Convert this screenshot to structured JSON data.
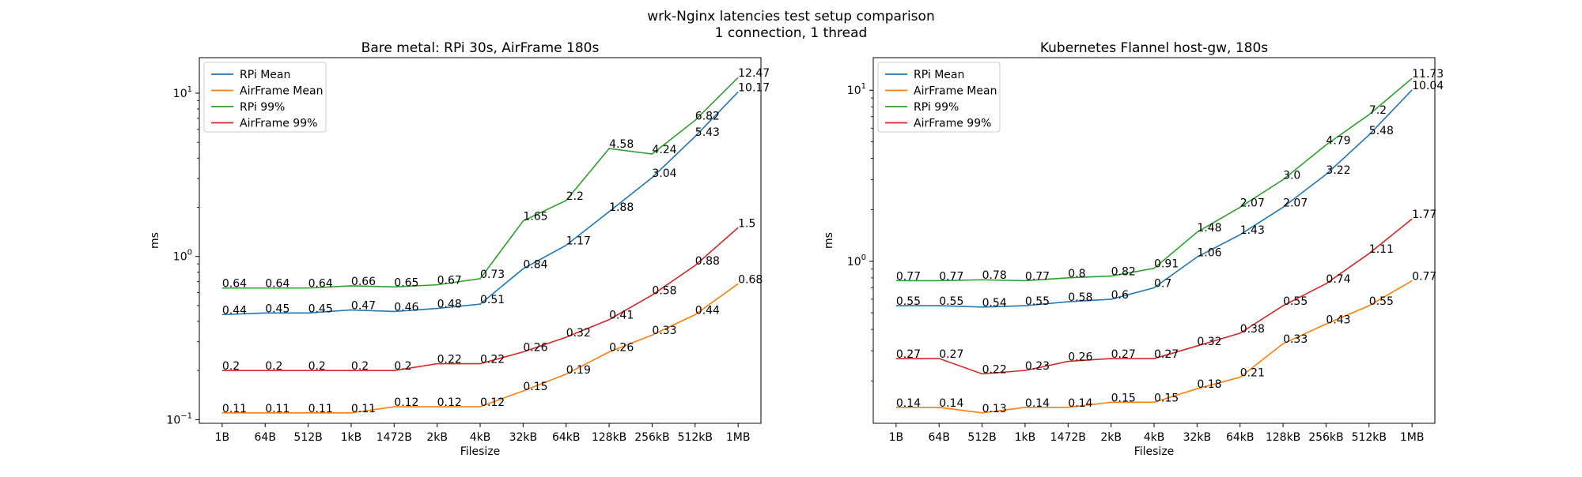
{
  "figure": {
    "suptitle_line1": "wrk-Nginx latencies test setup comparison",
    "suptitle_line2": "1 connection, 1 thread"
  },
  "chart_data": [
    {
      "type": "line",
      "title": "Bare metal: RPi 30s, AirFrame 180s",
      "xlabel": "Filesize",
      "ylabel": "ms",
      "yscale": "log",
      "ylim": [
        0.095,
        16.5
      ],
      "yticks": [
        {
          "value": 0.1,
          "base": "10",
          "exp": "−1"
        },
        {
          "value": 1,
          "base": "10",
          "exp": "0"
        },
        {
          "value": 10,
          "base": "10",
          "exp": "1"
        }
      ],
      "grid": false,
      "legend_position": "top-left",
      "categories": [
        "1B",
        "64B",
        "512B",
        "1kB",
        "1472B",
        "2kB",
        "4kB",
        "32kB",
        "64kB",
        "128kB",
        "256kB",
        "512kB",
        "1MB"
      ],
      "series": [
        {
          "name": "RPi Mean",
          "color": "#1f77b4",
          "values": [
            0.44,
            0.45,
            0.45,
            0.47,
            0.46,
            0.48,
            0.51,
            0.84,
            1.17,
            1.88,
            3.04,
            5.43,
            10.17
          ]
        },
        {
          "name": "AirFrame Mean",
          "color": "#ff7f0e",
          "values": [
            0.11,
            0.11,
            0.11,
            0.11,
            0.12,
            0.12,
            0.12,
            0.15,
            0.19,
            0.26,
            0.33,
            0.44,
            0.68
          ]
        },
        {
          "name": "RPi 99%",
          "color": "#2ca02c",
          "values": [
            0.64,
            0.64,
            0.64,
            0.66,
            0.65,
            0.67,
            0.73,
            1.65,
            2.2,
            4.58,
            4.24,
            6.82,
            12.47
          ]
        },
        {
          "name": "AirFrame 99%",
          "color": "#d62728",
          "values": [
            0.2,
            0.2,
            0.2,
            0.2,
            0.2,
            0.22,
            0.22,
            0.26,
            0.32,
            0.41,
            0.58,
            0.88,
            1.5
          ]
        }
      ],
      "value_labels": [
        [
          "0.44",
          "0.45",
          "0.45",
          "0.47",
          "0.46",
          "0.48",
          "0.51",
          "0.84",
          "1.17",
          "1.88",
          "3.04",
          "5.43",
          "10.17"
        ],
        [
          "0.11",
          "0.11",
          "0.11",
          "0.11",
          "0.12",
          "0.12",
          "0.12",
          "0.15",
          "0.19",
          "0.26",
          "0.33",
          "0.44",
          "0.68"
        ],
        [
          "0.64",
          "0.64",
          "0.64",
          "0.66",
          "0.65",
          "0.67",
          "0.73",
          "1.65",
          "2.2",
          "4.58",
          "4.24",
          "6.82",
          "12.47"
        ],
        [
          "0.2",
          "0.2",
          "0.2",
          "0.2",
          "0.2",
          "0.22",
          "0.22",
          "0.26",
          "0.32",
          "0.41",
          "0.58",
          "0.88",
          "1.5"
        ]
      ]
    },
    {
      "type": "line",
      "title": "Kubernetes Flannel host-gw, 180s",
      "xlabel": "Filesize",
      "ylabel": "ms",
      "yscale": "log",
      "ylim": [
        0.113,
        15.5
      ],
      "yticks": [
        {
          "value": 1,
          "base": "10",
          "exp": "0"
        },
        {
          "value": 10,
          "base": "10",
          "exp": "1"
        }
      ],
      "grid": false,
      "legend_position": "top-left",
      "categories": [
        "1B",
        "64B",
        "512B",
        "1kB",
        "1472B",
        "2kB",
        "4kB",
        "32kB",
        "64kB",
        "128kB",
        "256kB",
        "512kB",
        "1MB"
      ],
      "series": [
        {
          "name": "RPi Mean",
          "color": "#1f77b4",
          "values": [
            0.55,
            0.55,
            0.54,
            0.55,
            0.58,
            0.6,
            0.7,
            1.06,
            1.43,
            2.07,
            3.22,
            5.48,
            10.04
          ]
        },
        {
          "name": "AirFrame Mean",
          "color": "#ff7f0e",
          "values": [
            0.14,
            0.14,
            0.13,
            0.14,
            0.14,
            0.15,
            0.15,
            0.18,
            0.21,
            0.33,
            0.43,
            0.55,
            0.77
          ]
        },
        {
          "name": "RPi 99%",
          "color": "#2ca02c",
          "values": [
            0.77,
            0.77,
            0.78,
            0.77,
            0.8,
            0.82,
            0.91,
            1.48,
            2.07,
            3.0,
            4.79,
            7.2,
            11.73
          ]
        },
        {
          "name": "AirFrame 99%",
          "color": "#d62728",
          "values": [
            0.27,
            0.27,
            0.22,
            0.23,
            0.26,
            0.27,
            0.27,
            0.32,
            0.38,
            0.55,
            0.74,
            1.11,
            1.77
          ]
        }
      ],
      "value_labels": [
        [
          "0.55",
          "0.55",
          "0.54",
          "0.55",
          "0.58",
          "0.6",
          "0.7",
          "1.06",
          "1.43",
          "2.07",
          "3.22",
          "5.48",
          "10.04"
        ],
        [
          "0.14",
          "0.14",
          "0.13",
          "0.14",
          "0.14",
          "0.15",
          "0.15",
          "0.18",
          "0.21",
          "0.33",
          "0.43",
          "0.55",
          "0.77"
        ],
        [
          "0.77",
          "0.77",
          "0.78",
          "0.77",
          "0.8",
          "0.82",
          "0.91",
          "1.48",
          "2.07",
          "3.0",
          "4.79",
          "7.2",
          "11.73"
        ],
        [
          "0.27",
          "0.27",
          "0.22",
          "0.23",
          "0.26",
          "0.27",
          "0.27",
          "0.32",
          "0.38",
          "0.55",
          "0.74",
          "1.11",
          "1.77"
        ]
      ]
    }
  ]
}
